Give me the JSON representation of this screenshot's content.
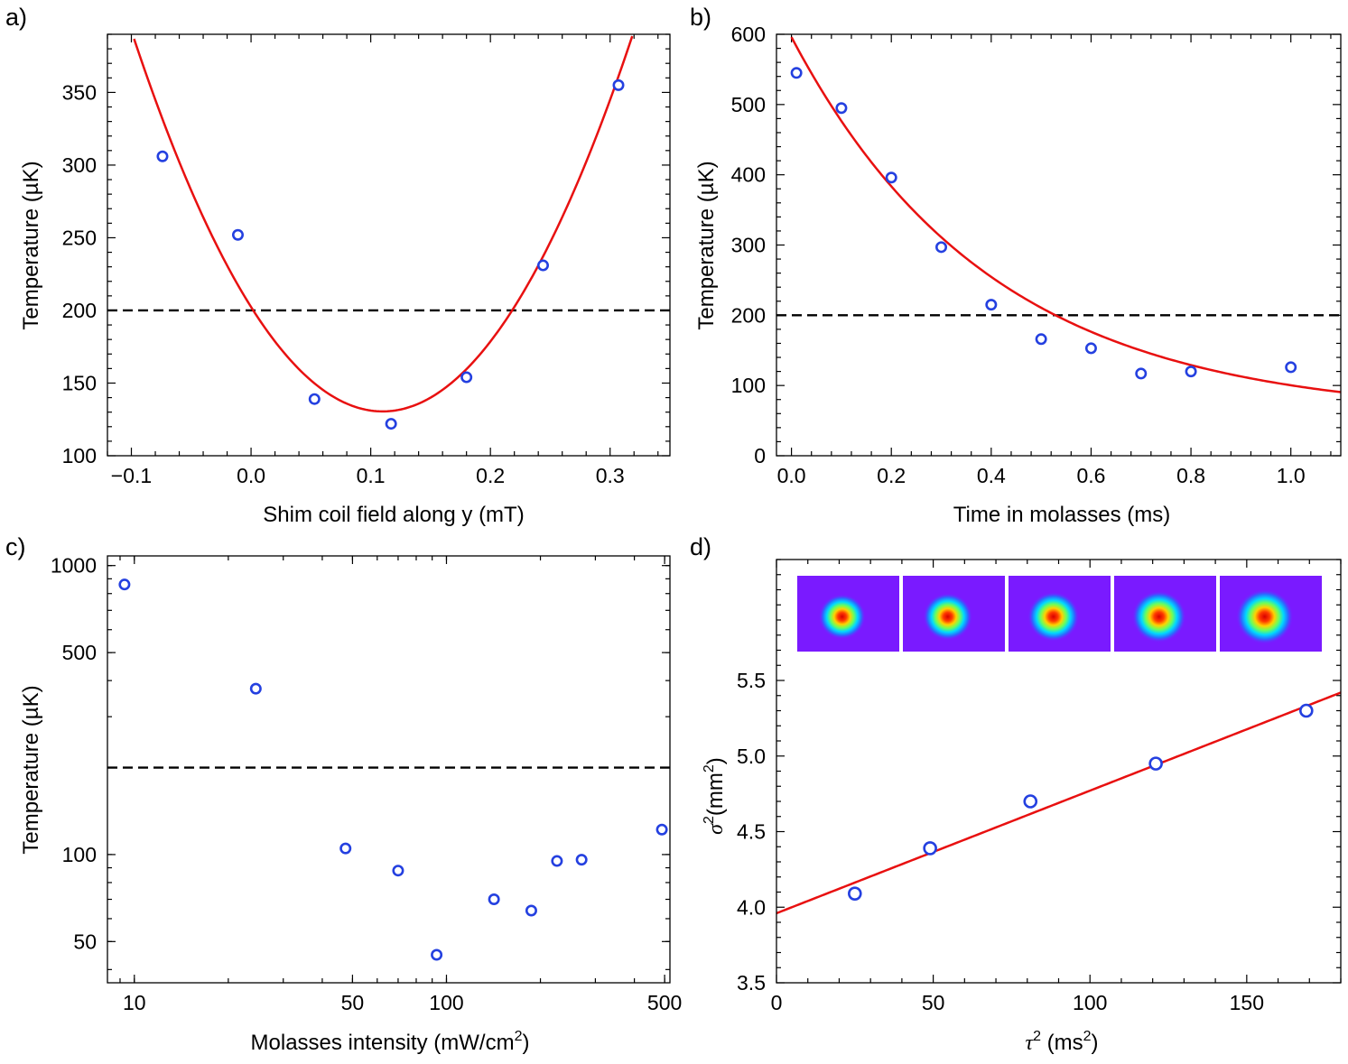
{
  "chart_data": [
    {
      "panel": "a)",
      "type": "scatter",
      "xlabel": "Shim coil field along y  (mT)",
      "ylabel": "Temperature  (µK)",
      "xlim": [
        -0.12,
        0.35
      ],
      "ylim": [
        100,
        390
      ],
      "xticks": [
        -0.1,
        0,
        0.1,
        0.2,
        0.3
      ],
      "xtick_labels": [
        "−0.1",
        "0.0",
        "0.1",
        "0.2",
        "0.3"
      ],
      "yticks": [
        100,
        150,
        200,
        250,
        300,
        350
      ],
      "ytick_labels": [
        "100",
        "150",
        "200",
        "250",
        "300",
        "350"
      ],
      "points": {
        "x": [
          -0.074,
          -0.011,
          0.053,
          0.117,
          0.18,
          0.244,
          0.307
        ],
        "y": [
          306,
          252,
          139,
          122,
          154,
          231,
          355
        ]
      },
      "fit": {
        "kind": "quadratic",
        "x0": 0.11,
        "ymin": 130.5,
        "a": 5940,
        "range": [
          -0.1,
          0.35
        ]
      },
      "reference_line": 200
    },
    {
      "panel": "b)",
      "type": "scatter",
      "xlabel": "Time in molasses  (ms)",
      "ylabel": "Temperature  (µK)",
      "xlim": [
        -0.03,
        1.1
      ],
      "ylim": [
        0,
        600
      ],
      "xticks": [
        0,
        0.2,
        0.4,
        0.6,
        0.8,
        1.0
      ],
      "xtick_labels": [
        "0.0",
        "0.2",
        "0.4",
        "0.6",
        "0.8",
        "1.0"
      ],
      "yticks": [
        0,
        100,
        200,
        300,
        400,
        500,
        600
      ],
      "ytick_labels": [
        "0",
        "100",
        "200",
        "300",
        "400",
        "500",
        "600"
      ],
      "points": {
        "x": [
          0.01,
          0.1,
          0.2,
          0.3,
          0.4,
          0.5,
          0.6,
          0.7,
          0.8,
          1.0
        ],
        "y": [
          545,
          495,
          396,
          297,
          215,
          166,
          153,
          117,
          120,
          126
        ]
      },
      "fit": {
        "kind": "exponential",
        "A": 540,
        "tau": 0.4,
        "offset": 56,
        "range": [
          0.0,
          1.1
        ]
      },
      "reference_line": 200
    },
    {
      "panel": "c)",
      "type": "scatter",
      "xscale": "log",
      "yscale": "log",
      "xlabel": "Molasses intensity (mW/cm²)",
      "xlabel_main": "Molasses intensity (mW/cm",
      "xlabel_sup": "2",
      "xlabel_end": ")",
      "ylabel": "Temperature  (µK)",
      "xlim": [
        8.2,
        520
      ],
      "ylim": [
        36,
        1080
      ],
      "xticks": [
        10,
        50,
        100,
        500
      ],
      "xtick_labels": [
        "10",
        "50",
        "100",
        "500"
      ],
      "yticks": [
        50,
        100,
        500,
        1000
      ],
      "ytick_labels": [
        "50",
        "100",
        "500",
        "1000"
      ],
      "points": {
        "x": [
          9.3,
          24.5,
          47.5,
          70,
          93,
          142,
          187,
          226,
          271,
          490
        ],
        "y": [
          860,
          375,
          105,
          88,
          45,
          70,
          64,
          95,
          96,
          122
        ]
      },
      "reference_line": 200
    },
    {
      "panel": "d)",
      "type": "scatter",
      "xlabel": "τ² (ms²)",
      "xlabel_sym": "τ",
      "xlabel_sup": "2",
      "xlabel_mid": " (ms",
      "xlabel_sup2": "2",
      "xlabel_end": ")",
      "ylabel": "σ²(mm²)",
      "ylabel_sym": "σ",
      "ylabel_sup": "2",
      "ylabel_mid": "(mm",
      "ylabel_sup2": "2",
      "ylabel_end": ")",
      "xlim": [
        0,
        180
      ],
      "ylim": [
        3.5,
        6.3
      ],
      "xticks": [
        0,
        50,
        100,
        150
      ],
      "xtick_labels": [
        "0",
        "50",
        "100",
        "150"
      ],
      "yticks": [
        3.5,
        4.0,
        4.5,
        5.0,
        5.5
      ],
      "ytick_labels": [
        "3.5",
        "4.0",
        "4.5",
        "5.0",
        "5.5"
      ],
      "points": {
        "x": [
          25,
          49,
          81,
          121,
          169
        ],
        "y": [
          4.09,
          4.39,
          4.7,
          4.95,
          5.3
        ]
      },
      "fit": {
        "kind": "linear",
        "slope": 0.00811,
        "intercept": 3.96,
        "range": [
          0,
          180
        ]
      },
      "inset": {
        "images": 5,
        "description": "cloud expansion images",
        "cloud_sizes": [
          1.0,
          1.05,
          1.1,
          1.15,
          1.22
        ]
      }
    }
  ],
  "colors": {
    "points": "#2440e0",
    "fit": "#e81010",
    "reference": "#000000",
    "inset_bg": "#7a1aff"
  }
}
